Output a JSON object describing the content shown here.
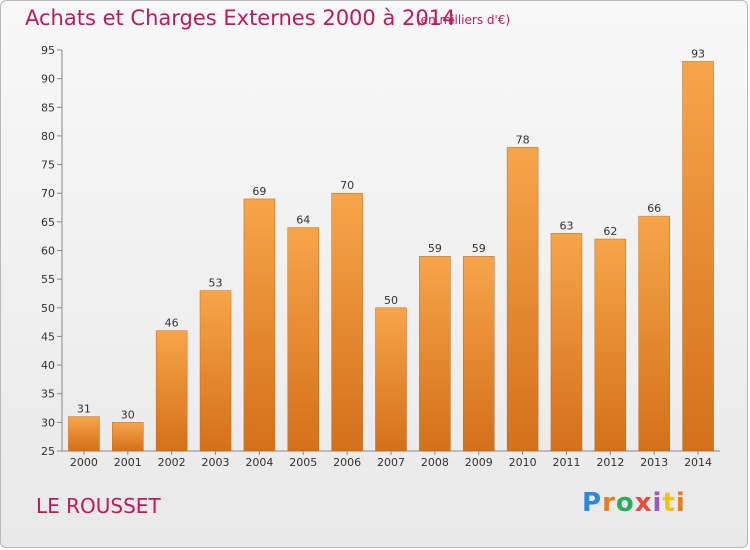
{
  "header": {
    "title": "Achats et Charges Externes 2000 à 2014",
    "subtitle": "(en milliers d'€)"
  },
  "footer": {
    "place": "LE ROUSSET",
    "logo_text": "Proxiti",
    "logo_colors": [
      "#2e86de",
      "#e67e22",
      "#27ae60",
      "#e74c3c",
      "#9b59b6",
      "#f1c40f",
      "#e67e22"
    ]
  },
  "colors": {
    "bar_light": "#f7a54a",
    "bar_dark": "#d4701a",
    "title": "#c2185b"
  },
  "chart_data": {
    "type": "bar",
    "title": "Achats et Charges Externes 2000 à 2014",
    "subtitle": "(en milliers d'€)",
    "categories": [
      "2000",
      "2001",
      "2002",
      "2003",
      "2004",
      "2005",
      "2006",
      "2007",
      "2008",
      "2009",
      "2010",
      "2011",
      "2012",
      "2013",
      "2014"
    ],
    "values": [
      31,
      30,
      46,
      53,
      69,
      64,
      70,
      50,
      59,
      59,
      78,
      63,
      62,
      66,
      93
    ],
    "ylim": [
      25,
      95
    ],
    "yticks": [
      25,
      30,
      35,
      40,
      45,
      50,
      55,
      60,
      65,
      70,
      75,
      80,
      85,
      90,
      95
    ],
    "grid": false,
    "data_labels": true
  }
}
